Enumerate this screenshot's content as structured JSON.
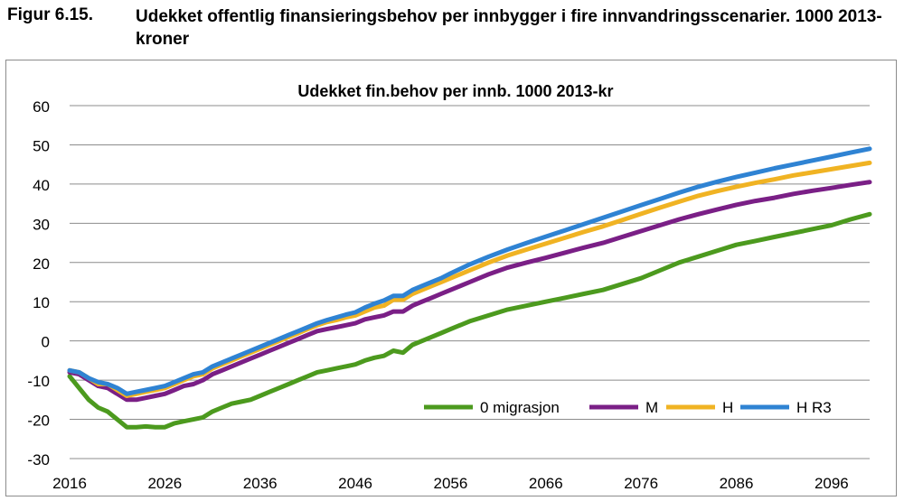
{
  "figure": {
    "number": "Figur 6.15.",
    "title": "Udekket offentlig finansieringsbehov per innbygger i fire innvandringsscenarier. 1000 2013-kroner"
  },
  "chart_data": {
    "type": "line",
    "title": "Udekket fin.behov per innb. 1000 2013-kr",
    "xlabel": "",
    "ylabel": "",
    "xlim": [
      2016,
      2100
    ],
    "ylim": [
      -30,
      60
    ],
    "x_ticks": [
      2016,
      2026,
      2036,
      2046,
      2056,
      2066,
      2076,
      2086,
      2096
    ],
    "y_ticks": [
      60,
      50,
      40,
      30,
      20,
      10,
      0,
      -10,
      -20,
      -30
    ],
    "grid": "horizontal",
    "legend_position": "bottom-right",
    "series": [
      {
        "name": "0 migrasjon",
        "color": "#4c9a1e",
        "points": [
          [
            2016,
            -9
          ],
          [
            2017,
            -12
          ],
          [
            2018,
            -15
          ],
          [
            2019,
            -17
          ],
          [
            2020,
            -18
          ],
          [
            2021,
            -20
          ],
          [
            2022,
            -22
          ],
          [
            2023,
            -22
          ],
          [
            2024,
            -21.8
          ],
          [
            2025,
            -22
          ],
          [
            2026,
            -22
          ],
          [
            2027,
            -21
          ],
          [
            2028,
            -20.5
          ],
          [
            2029,
            -20
          ],
          [
            2030,
            -19.5
          ],
          [
            2031,
            -18
          ],
          [
            2032,
            -17
          ],
          [
            2033,
            -16
          ],
          [
            2034,
            -15.5
          ],
          [
            2035,
            -15
          ],
          [
            2036,
            -14
          ],
          [
            2037,
            -13
          ],
          [
            2038,
            -12
          ],
          [
            2039,
            -11
          ],
          [
            2040,
            -10
          ],
          [
            2041,
            -9
          ],
          [
            2042,
            -8
          ],
          [
            2043,
            -7.5
          ],
          [
            2044,
            -7
          ],
          [
            2045,
            -6.5
          ],
          [
            2046,
            -6
          ],
          [
            2047,
            -5
          ],
          [
            2048,
            -4.3
          ],
          [
            2049,
            -3.8
          ],
          [
            2050,
            -2.5
          ],
          [
            2051,
            -3
          ],
          [
            2052,
            -1
          ],
          [
            2053,
            0
          ],
          [
            2054,
            1
          ],
          [
            2055,
            2
          ],
          [
            2056,
            3
          ],
          [
            2058,
            5
          ],
          [
            2060,
            6.5
          ],
          [
            2062,
            8
          ],
          [
            2064,
            9
          ],
          [
            2066,
            10
          ],
          [
            2068,
            11
          ],
          [
            2070,
            12
          ],
          [
            2072,
            13
          ],
          [
            2074,
            14.5
          ],
          [
            2076,
            16
          ],
          [
            2078,
            18
          ],
          [
            2080,
            20
          ],
          [
            2082,
            21.5
          ],
          [
            2084,
            23
          ],
          [
            2086,
            24.5
          ],
          [
            2088,
            25.5
          ],
          [
            2090,
            26.5
          ],
          [
            2092,
            27.5
          ],
          [
            2094,
            28.5
          ],
          [
            2096,
            29.5
          ],
          [
            2098,
            31
          ],
          [
            2100,
            32.3
          ]
        ]
      },
      {
        "name": "M",
        "color": "#7a1f86",
        "points": [
          [
            2016,
            -8
          ],
          [
            2017,
            -8.5
          ],
          [
            2018,
            -10
          ],
          [
            2019,
            -11.5
          ],
          [
            2020,
            -12
          ],
          [
            2021,
            -13.5
          ],
          [
            2022,
            -15
          ],
          [
            2023,
            -15
          ],
          [
            2024,
            -14.5
          ],
          [
            2025,
            -14
          ],
          [
            2026,
            -13.5
          ],
          [
            2027,
            -12.5
          ],
          [
            2028,
            -11.5
          ],
          [
            2029,
            -11
          ],
          [
            2030,
            -10
          ],
          [
            2031,
            -8.5
          ],
          [
            2032,
            -7.5
          ],
          [
            2033,
            -6.5
          ],
          [
            2034,
            -5.5
          ],
          [
            2035,
            -4.5
          ],
          [
            2036,
            -3.5
          ],
          [
            2037,
            -2.5
          ],
          [
            2038,
            -1.5
          ],
          [
            2039,
            -0.5
          ],
          [
            2040,
            0.5
          ],
          [
            2041,
            1.5
          ],
          [
            2042,
            2.5
          ],
          [
            2043,
            3
          ],
          [
            2044,
            3.5
          ],
          [
            2045,
            4
          ],
          [
            2046,
            4.5
          ],
          [
            2047,
            5.5
          ],
          [
            2048,
            6
          ],
          [
            2049,
            6.5
          ],
          [
            2050,
            7.5
          ],
          [
            2051,
            7.5
          ],
          [
            2052,
            9
          ],
          [
            2053,
            10
          ],
          [
            2054,
            11
          ],
          [
            2055,
            12
          ],
          [
            2056,
            13
          ],
          [
            2058,
            15
          ],
          [
            2060,
            17
          ],
          [
            2062,
            18.7
          ],
          [
            2064,
            20
          ],
          [
            2066,
            21.2
          ],
          [
            2068,
            22.5
          ],
          [
            2070,
            23.8
          ],
          [
            2072,
            25
          ],
          [
            2074,
            26.5
          ],
          [
            2076,
            28
          ],
          [
            2078,
            29.5
          ],
          [
            2080,
            31
          ],
          [
            2082,
            32.3
          ],
          [
            2084,
            33.5
          ],
          [
            2086,
            34.7
          ],
          [
            2088,
            35.7
          ],
          [
            2090,
            36.5
          ],
          [
            2092,
            37.5
          ],
          [
            2094,
            38.3
          ],
          [
            2096,
            39
          ],
          [
            2098,
            39.8
          ],
          [
            2100,
            40.5
          ]
        ]
      },
      {
        "name": "H",
        "color": "#f0b323",
        "points": [
          [
            2016,
            -7.5
          ],
          [
            2017,
            -8
          ],
          [
            2018,
            -9.5
          ],
          [
            2019,
            -11
          ],
          [
            2020,
            -11
          ],
          [
            2021,
            -12.5
          ],
          [
            2022,
            -14
          ],
          [
            2023,
            -13.5
          ],
          [
            2024,
            -13
          ],
          [
            2025,
            -12.5
          ],
          [
            2026,
            -12
          ],
          [
            2027,
            -11
          ],
          [
            2028,
            -10
          ],
          [
            2029,
            -9
          ],
          [
            2030,
            -8.5
          ],
          [
            2031,
            -7
          ],
          [
            2032,
            -6
          ],
          [
            2033,
            -5
          ],
          [
            2034,
            -4
          ],
          [
            2035,
            -3
          ],
          [
            2036,
            -2
          ],
          [
            2037,
            -1
          ],
          [
            2038,
            0
          ],
          [
            2039,
            1
          ],
          [
            2040,
            2
          ],
          [
            2041,
            3
          ],
          [
            2042,
            4
          ],
          [
            2043,
            4.8
          ],
          [
            2044,
            5.3
          ],
          [
            2045,
            6
          ],
          [
            2046,
            6.5
          ],
          [
            2047,
            7.5
          ],
          [
            2048,
            8.5
          ],
          [
            2049,
            9
          ],
          [
            2050,
            10.5
          ],
          [
            2051,
            10.5
          ],
          [
            2052,
            12
          ],
          [
            2053,
            13
          ],
          [
            2054,
            14
          ],
          [
            2055,
            15
          ],
          [
            2056,
            16
          ],
          [
            2058,
            18
          ],
          [
            2060,
            20
          ],
          [
            2062,
            21.8
          ],
          [
            2064,
            23.3
          ],
          [
            2066,
            24.8
          ],
          [
            2068,
            26.3
          ],
          [
            2070,
            27.8
          ],
          [
            2072,
            29.2
          ],
          [
            2074,
            30.8
          ],
          [
            2076,
            32.4
          ],
          [
            2078,
            34
          ],
          [
            2080,
            35.5
          ],
          [
            2082,
            37
          ],
          [
            2084,
            38.2
          ],
          [
            2086,
            39.3
          ],
          [
            2088,
            40.3
          ],
          [
            2090,
            41.2
          ],
          [
            2092,
            42.2
          ],
          [
            2094,
            43
          ],
          [
            2096,
            43.8
          ],
          [
            2098,
            44.6
          ],
          [
            2100,
            45.4
          ]
        ]
      },
      {
        "name": "H R3",
        "color": "#2f83d3",
        "points": [
          [
            2016,
            -7.5
          ],
          [
            2017,
            -8
          ],
          [
            2018,
            -9.5
          ],
          [
            2019,
            -10.5
          ],
          [
            2020,
            -11
          ],
          [
            2021,
            -12
          ],
          [
            2022,
            -13.5
          ],
          [
            2023,
            -13
          ],
          [
            2024,
            -12.5
          ],
          [
            2025,
            -12
          ],
          [
            2026,
            -11.5
          ],
          [
            2027,
            -10.5
          ],
          [
            2028,
            -9.5
          ],
          [
            2029,
            -8.5
          ],
          [
            2030,
            -8
          ],
          [
            2031,
            -6.5
          ],
          [
            2032,
            -5.5
          ],
          [
            2033,
            -4.5
          ],
          [
            2034,
            -3.5
          ],
          [
            2035,
            -2.5
          ],
          [
            2036,
            -1.5
          ],
          [
            2037,
            -0.5
          ],
          [
            2038,
            0.5
          ],
          [
            2039,
            1.5
          ],
          [
            2040,
            2.5
          ],
          [
            2041,
            3.5
          ],
          [
            2042,
            4.5
          ],
          [
            2043,
            5.3
          ],
          [
            2044,
            6
          ],
          [
            2045,
            6.7
          ],
          [
            2046,
            7.3
          ],
          [
            2047,
            8.5
          ],
          [
            2048,
            9.5
          ],
          [
            2049,
            10.3
          ],
          [
            2050,
            11.5
          ],
          [
            2051,
            11.5
          ],
          [
            2052,
            13
          ],
          [
            2053,
            14
          ],
          [
            2054,
            15
          ],
          [
            2055,
            16
          ],
          [
            2056,
            17.2
          ],
          [
            2058,
            19.5
          ],
          [
            2060,
            21.5
          ],
          [
            2062,
            23.3
          ],
          [
            2064,
            25
          ],
          [
            2066,
            26.6
          ],
          [
            2068,
            28.2
          ],
          [
            2070,
            29.8
          ],
          [
            2072,
            31.4
          ],
          [
            2074,
            33
          ],
          [
            2076,
            34.6
          ],
          [
            2078,
            36.2
          ],
          [
            2080,
            37.8
          ],
          [
            2082,
            39.3
          ],
          [
            2084,
            40.6
          ],
          [
            2086,
            41.8
          ],
          [
            2088,
            42.9
          ],
          [
            2090,
            44
          ],
          [
            2092,
            45
          ],
          [
            2094,
            46
          ],
          [
            2096,
            47
          ],
          [
            2098,
            48
          ],
          [
            2100,
            49
          ]
        ]
      }
    ]
  }
}
